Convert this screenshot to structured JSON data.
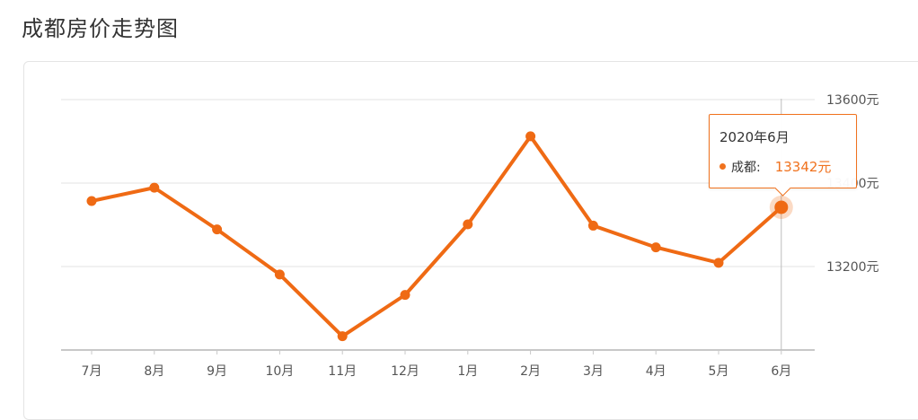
{
  "page": {
    "title": "成都房价走势图"
  },
  "colors": {
    "line": "#ef6a14",
    "grid": "#e3e3e3",
    "tick_text": "#555555",
    "tooltip_border": "#f0721e"
  },
  "chart_data": {
    "type": "line",
    "title": "",
    "xlabel": "",
    "ylabel": "",
    "categories": [
      "7月",
      "8月",
      "9月",
      "10月",
      "11月",
      "12月",
      "1月",
      "2月",
      "3月",
      "4月",
      "5月",
      "6月"
    ],
    "series": [
      {
        "name": "成都",
        "values": [
          13357,
          13389,
          13289,
          13181,
          13033,
          13132,
          13301,
          13512,
          13298,
          13246,
          13209,
          13342
        ]
      }
    ],
    "ylim": [
      13000,
      13600
    ],
    "y_ticks": [
      13200,
      13400,
      13600
    ],
    "y_tick_labels": [
      "13200元",
      "13400元",
      "13600元"
    ],
    "y_axis_position": "right",
    "grid": true,
    "highlight_index": 11
  },
  "tooltip": {
    "title": "2020年6月",
    "series_label": "成都:",
    "value_text": "13342元"
  }
}
